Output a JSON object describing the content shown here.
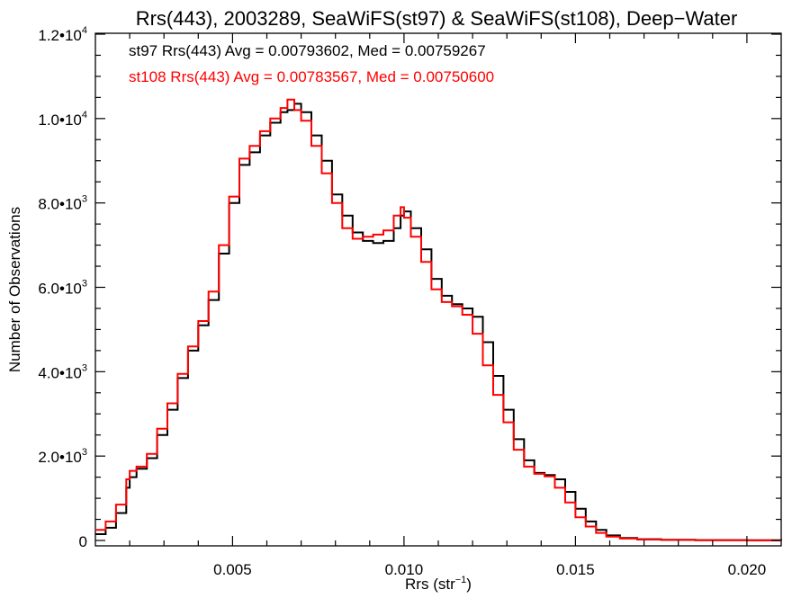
{
  "chart_data": {
    "type": "line",
    "step": true,
    "title": "Rrs(443), 2003289, SeaWiFS(st97) & SeaWiFS(st108), Deep−Water",
    "xlabel": "Rrs (str",
    "xlabel_sup": "−1",
    "xlabel_end": ")",
    "ylabel": "Number of Observations",
    "xlim": [
      0.001,
      0.021
    ],
    "ylim": [
      0,
      12000
    ],
    "x_ticks": [
      {
        "value": 0.005,
        "label": "0.005"
      },
      {
        "value": 0.01,
        "label": "0.010"
      },
      {
        "value": 0.015,
        "label": "0.015"
      },
      {
        "value": 0.02,
        "label": "0.020"
      }
    ],
    "y_ticks": [
      {
        "value": 0,
        "label": "0",
        "sup": ""
      },
      {
        "value": 2000,
        "label": "2.0•10",
        "sup": "3"
      },
      {
        "value": 4000,
        "label": "4.0•10",
        "sup": "3"
      },
      {
        "value": 6000,
        "label": "6.0•10",
        "sup": "3"
      },
      {
        "value": 8000,
        "label": "8.0•10",
        "sup": "3"
      },
      {
        "value": 10000,
        "label": "1.0•10",
        "sup": "4"
      },
      {
        "value": 12000,
        "label": "1.2•10",
        "sup": "4"
      }
    ],
    "legend": [
      {
        "text": "st97 Rrs(443) Avg = 0.00793602, Med = 0.00759267",
        "color": "#000000"
      },
      {
        "text": "st108 Rrs(443) Avg = 0.00783567, Med = 0.00750600",
        "color": "#ff0000"
      }
    ],
    "grid": false,
    "series": [
      {
        "name": "st97",
        "color": "#000000",
        "points": [
          [
            0.001,
            150
          ],
          [
            0.0013,
            300
          ],
          [
            0.0016,
            650
          ],
          [
            0.0019,
            1250
          ],
          [
            0.002,
            1500
          ],
          [
            0.0022,
            1700
          ],
          [
            0.0025,
            1950
          ],
          [
            0.0028,
            2500
          ],
          [
            0.0031,
            3100
          ],
          [
            0.0034,
            3850
          ],
          [
            0.0037,
            4500
          ],
          [
            0.004,
            5100
          ],
          [
            0.0043,
            5700
          ],
          [
            0.0046,
            6800
          ],
          [
            0.0049,
            8000
          ],
          [
            0.0052,
            8900
          ],
          [
            0.0055,
            9200
          ],
          [
            0.0058,
            9600
          ],
          [
            0.0061,
            9900
          ],
          [
            0.0064,
            10150
          ],
          [
            0.0066,
            10200
          ],
          [
            0.0068,
            10350
          ],
          [
            0.007,
            10150
          ],
          [
            0.0073,
            9600
          ],
          [
            0.0076,
            9000
          ],
          [
            0.0079,
            8200
          ],
          [
            0.0082,
            7700
          ],
          [
            0.0085,
            7300
          ],
          [
            0.0088,
            7100
          ],
          [
            0.0091,
            7050
          ],
          [
            0.0094,
            7100
          ],
          [
            0.0097,
            7400
          ],
          [
            0.0099,
            7700
          ],
          [
            0.01,
            7800
          ],
          [
            0.0102,
            7400
          ],
          [
            0.0105,
            6900
          ],
          [
            0.0108,
            6200
          ],
          [
            0.0111,
            5800
          ],
          [
            0.0114,
            5600
          ],
          [
            0.0117,
            5500
          ],
          [
            0.012,
            5300
          ],
          [
            0.0123,
            4700
          ],
          [
            0.0126,
            3900
          ],
          [
            0.0129,
            3100
          ],
          [
            0.0132,
            2400
          ],
          [
            0.0135,
            1900
          ],
          [
            0.0138,
            1600
          ],
          [
            0.0141,
            1550
          ],
          [
            0.0144,
            1450
          ],
          [
            0.0147,
            1150
          ],
          [
            0.015,
            750
          ],
          [
            0.0153,
            450
          ],
          [
            0.0156,
            250
          ],
          [
            0.0159,
            120
          ],
          [
            0.0163,
            60
          ],
          [
            0.0168,
            30
          ],
          [
            0.0175,
            15
          ],
          [
            0.0185,
            8
          ],
          [
            0.02,
            4
          ],
          [
            0.021,
            2
          ]
        ]
      },
      {
        "name": "st108",
        "color": "#ff0000",
        "points": [
          [
            0.001,
            250
          ],
          [
            0.0013,
            450
          ],
          [
            0.0016,
            850
          ],
          [
            0.0019,
            1450
          ],
          [
            0.002,
            1650
          ],
          [
            0.0022,
            1750
          ],
          [
            0.0025,
            2050
          ],
          [
            0.0028,
            2650
          ],
          [
            0.0031,
            3250
          ],
          [
            0.0034,
            3950
          ],
          [
            0.0037,
            4600
          ],
          [
            0.004,
            5200
          ],
          [
            0.0043,
            5900
          ],
          [
            0.0046,
            7000
          ],
          [
            0.0049,
            8150
          ],
          [
            0.0052,
            9050
          ],
          [
            0.0055,
            9350
          ],
          [
            0.0058,
            9700
          ],
          [
            0.0061,
            10000
          ],
          [
            0.0064,
            10250
          ],
          [
            0.0066,
            10450
          ],
          [
            0.0068,
            10200
          ],
          [
            0.007,
            9950
          ],
          [
            0.0073,
            9350
          ],
          [
            0.0076,
            8700
          ],
          [
            0.0079,
            8000
          ],
          [
            0.0082,
            7400
          ],
          [
            0.0085,
            7150
          ],
          [
            0.0088,
            7200
          ],
          [
            0.0091,
            7250
          ],
          [
            0.0094,
            7350
          ],
          [
            0.0097,
            7700
          ],
          [
            0.0099,
            7900
          ],
          [
            0.01,
            7650
          ],
          [
            0.0102,
            7200
          ],
          [
            0.0105,
            6600
          ],
          [
            0.0108,
            5950
          ],
          [
            0.0111,
            5650
          ],
          [
            0.0114,
            5550
          ],
          [
            0.0117,
            5350
          ],
          [
            0.012,
            4900
          ],
          [
            0.0123,
            4150
          ],
          [
            0.0126,
            3450
          ],
          [
            0.0129,
            2800
          ],
          [
            0.0132,
            2150
          ],
          [
            0.0135,
            1750
          ],
          [
            0.0138,
            1580
          ],
          [
            0.0141,
            1520
          ],
          [
            0.0144,
            1250
          ],
          [
            0.0147,
            900
          ],
          [
            0.015,
            550
          ],
          [
            0.0153,
            330
          ],
          [
            0.0156,
            180
          ],
          [
            0.0159,
            90
          ],
          [
            0.0163,
            45
          ],
          [
            0.0168,
            22
          ],
          [
            0.0175,
            12
          ],
          [
            0.0185,
            6
          ],
          [
            0.02,
            3
          ],
          [
            0.021,
            2
          ]
        ]
      }
    ]
  }
}
